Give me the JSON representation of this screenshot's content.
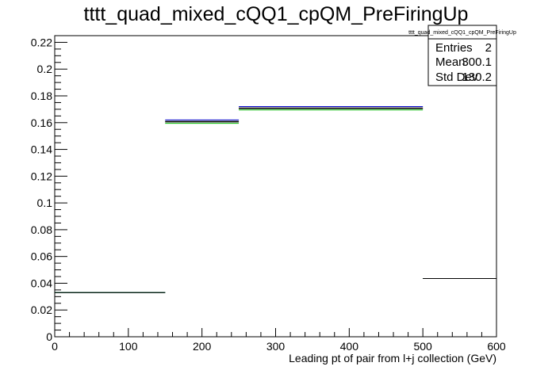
{
  "chart_data": {
    "type": "bar",
    "title": "tttt_quad_mixed_cQQ1_cpQM_PreFiringUp",
    "xlabel": "Leading pt of pair from l+j collection (GeV)",
    "ylabel": "",
    "xlim": [
      0,
      600
    ],
    "ylim": [
      0,
      0.225
    ],
    "xticks": [
      0,
      100,
      200,
      300,
      400,
      500,
      600
    ],
    "yticks": [
      0,
      0.02,
      0.04,
      0.06,
      0.08,
      0.1,
      0.12,
      0.14,
      0.16,
      0.18,
      0.2,
      0.22
    ],
    "bin_edges": [
      0,
      150,
      250,
      500,
      600
    ],
    "series": [
      {
        "values": [
          0.033,
          0.1605,
          0.1705,
          0.0435
        ],
        "color": "#000000"
      },
      {
        "values": [
          0.033,
          0.162,
          0.172,
          0.0435
        ],
        "color": "#0000cc"
      },
      {
        "values": [
          0.033,
          0.1595,
          0.1695,
          0.0435
        ],
        "color": "#00bb00"
      },
      {
        "values": [
          0.033,
          0.161,
          0.171,
          0.0435
        ],
        "color": "#000000"
      }
    ],
    "grid": false,
    "stats_box": {
      "title": "tttt_quad_mixed_cQQ1_cpQM_PreFiringUp",
      "rows": [
        {
          "label": "Entries",
          "value": "2"
        },
        {
          "label": "Mean",
          "value": "300.1"
        },
        {
          "label": "Std Dev",
          "value": "130.2"
        }
      ]
    }
  }
}
